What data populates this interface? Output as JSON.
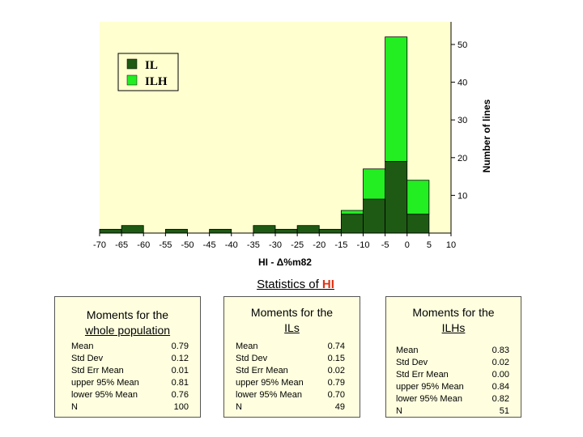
{
  "chart_data": {
    "type": "bar",
    "title": "",
    "xlabel": "HI - Δ%m82",
    "ylabel": "Number of lines",
    "xlim": [
      -70,
      10
    ],
    "ylim": [
      0,
      55
    ],
    "x_ticks": [
      -70,
      -65,
      -60,
      -55,
      -50,
      -45,
      -40,
      -35,
      -30,
      -25,
      -20,
      -15,
      -10,
      -5,
      0,
      5,
      10
    ],
    "y_ticks": [
      10,
      20,
      30,
      40,
      50
    ],
    "y_axis_position": "right",
    "bin_width": 5,
    "legend_position": "top-left",
    "series": [
      {
        "name": "IL",
        "color": "#1e5a14",
        "bins": [
          [
            -70,
            1
          ],
          [
            -65,
            2
          ],
          [
            -55,
            1
          ],
          [
            -45,
            1
          ],
          [
            -35,
            2
          ],
          [
            -30,
            1
          ],
          [
            -25,
            2
          ],
          [
            -20,
            1
          ],
          [
            -15,
            5
          ],
          [
            -10,
            9
          ],
          [
            -5,
            19
          ],
          [
            0,
            5
          ]
        ]
      },
      {
        "name": "ILH",
        "color": "#22ee22",
        "bins": [
          [
            -15,
            1
          ],
          [
            -10,
            8
          ],
          [
            -5,
            33
          ],
          [
            0,
            9
          ]
        ]
      }
    ]
  },
  "stats": {
    "title_prefix": "Statistics of ",
    "title_highlight": "HI",
    "boxes": [
      {
        "heading1": "Moments for the",
        "heading2": "whole population",
        "rows": [
          {
            "label": "Mean",
            "value": "0.79"
          },
          {
            "label": "Std Dev",
            "value": "0.12"
          },
          {
            "label": "Std Err Mean",
            "value": "0.01"
          },
          {
            "label": "upper 95% Mean",
            "value": "0.81"
          },
          {
            "label": "lower 95% Mean",
            "value": "0.76"
          },
          {
            "label": "N",
            "value": "100"
          }
        ]
      },
      {
        "heading1": "Moments for the",
        "heading2": "ILs",
        "rows": [
          {
            "label": "Mean",
            "value": "0.74"
          },
          {
            "label": "Std Dev",
            "value": "0.15"
          },
          {
            "label": "Std Err Mean",
            "value": "0.02"
          },
          {
            "label": "upper 95% Mean",
            "value": "0.79"
          },
          {
            "label": "lower 95% Mean",
            "value": "0.70"
          },
          {
            "label": "N",
            "value": "49"
          }
        ]
      },
      {
        "heading1": "Moments for the",
        "heading2": "ILHs",
        "rows": [
          {
            "label": "Mean",
            "value": "0.83"
          },
          {
            "label": "Std Dev",
            "value": "0.02"
          },
          {
            "label": "Std Err Mean",
            "value": "0.00"
          },
          {
            "label": "upper 95% Mean",
            "value": "0.84"
          },
          {
            "label": "lower 95% Mean",
            "value": "0.82"
          },
          {
            "label": "N",
            "value": "51"
          }
        ]
      }
    ]
  }
}
